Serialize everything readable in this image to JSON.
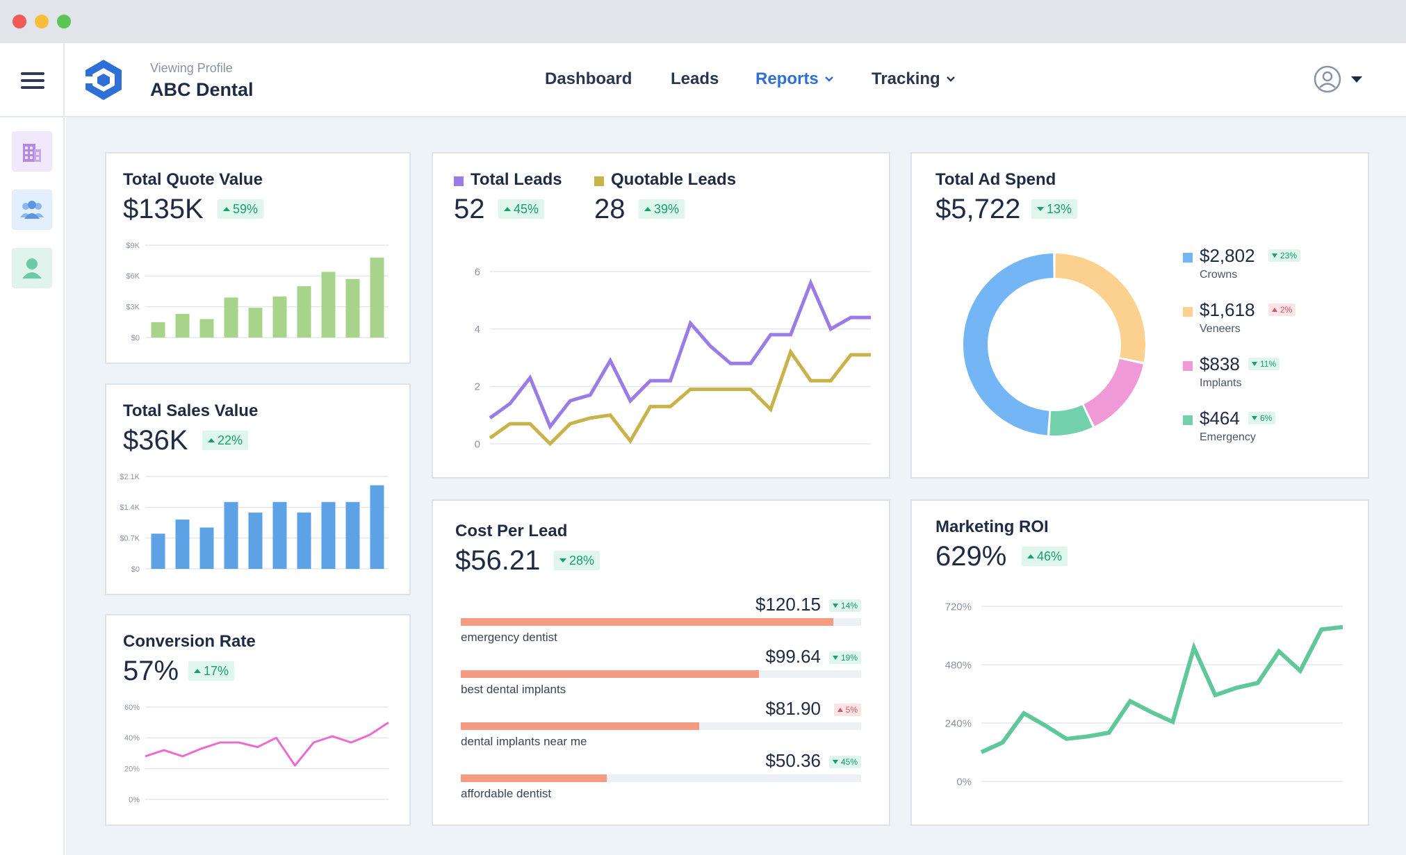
{
  "header": {
    "profile_caption": "Viewing Profile",
    "profile_name": "ABC Dental",
    "nav": [
      {
        "label": "Dashboard",
        "dropdown": false,
        "active": false
      },
      {
        "label": "Leads",
        "dropdown": false,
        "active": false
      },
      {
        "label": "Reports",
        "dropdown": true,
        "active": true
      },
      {
        "label": "Tracking",
        "dropdown": true,
        "active": false
      }
    ],
    "accent_color": "#2f6fd8"
  },
  "sidebar": {
    "items": [
      {
        "icon": "building-icon",
        "color": "#b388e6"
      },
      {
        "icon": "users-icon",
        "color": "#6aa3e8"
      },
      {
        "icon": "user-icon",
        "color": "#6cc9a6"
      }
    ]
  },
  "cards": {
    "quote": {
      "title": "Total Quote Value",
      "value": "$135K",
      "change": "59%",
      "direction": "up"
    },
    "sales": {
      "title": "Total Sales Value",
      "value": "$36K",
      "change": "22%",
      "direction": "up"
    },
    "conversion": {
      "title": "Conversion Rate",
      "value": "57%",
      "change": "17%",
      "direction": "up"
    },
    "leads": {
      "series1_label": "Total Leads",
      "series1_value": "52",
      "series1_change": "45%",
      "series2_label": "Quotable Leads",
      "series2_value": "28",
      "series2_change": "39%"
    },
    "ad_spend": {
      "title": "Total Ad Spend",
      "value": "$5,722",
      "change": "13%",
      "direction": "down",
      "legend": [
        {
          "amount": "$2,802",
          "name": "Crowns",
          "change": "23%",
          "direction": "down",
          "status": "good"
        },
        {
          "amount": "$1,618",
          "name": "Veneers",
          "change": "2%",
          "direction": "up",
          "status": "bad"
        },
        {
          "amount": "$838",
          "name": "Implants",
          "change": "11%",
          "direction": "down",
          "status": "good"
        },
        {
          "amount": "$464",
          "name": "Emergency",
          "change": "6%",
          "direction": "down",
          "status": "good"
        }
      ]
    },
    "cpl": {
      "title": "Cost Per Lead",
      "value": "$56.21",
      "change": "28%",
      "direction": "down",
      "rows": [
        {
          "value": "$120.15",
          "change": "14%",
          "direction": "down",
          "status": "good",
          "label": "emergency dentist",
          "fraction": 0.93
        },
        {
          "value": "$99.64",
          "change": "19%",
          "direction": "down",
          "status": "good",
          "label": "best dental implants",
          "fraction": 0.745
        },
        {
          "value": "$81.90",
          "change": "5%",
          "direction": "up",
          "status": "bad",
          "label": "dental implants near me",
          "fraction": 0.595
        },
        {
          "value": "$50.36",
          "change": "45%",
          "direction": "down",
          "status": "good",
          "label": "affordable dentist",
          "fraction": 0.365
        }
      ]
    },
    "roi": {
      "title": "Marketing ROI",
      "value": "629%",
      "change": "46%",
      "direction": "up"
    }
  },
  "chart_data": [
    {
      "id": "quote",
      "type": "bar",
      "color": "#a8d38a",
      "yticks": [
        "$0",
        "$3K",
        "$6K",
        "$9K"
      ],
      "ylim": [
        0,
        9000
      ],
      "values": [
        1500,
        2300,
        1800,
        3900,
        2900,
        4000,
        5000,
        6400,
        5700,
        7800
      ]
    },
    {
      "id": "sales",
      "type": "bar",
      "color": "#5ea2e6",
      "yticks": [
        "$0",
        "$0.7K",
        "$1.4K",
        "$2.1K"
      ],
      "ylim": [
        0,
        2100
      ],
      "values": [
        800,
        1120,
        940,
        1520,
        1280,
        1520,
        1280,
        1520,
        1520,
        1900
      ]
    },
    {
      "id": "conversion",
      "type": "line",
      "color": "#ec6bd0",
      "yticks": [
        "0%",
        "20%",
        "40%",
        "60%"
      ],
      "ylim": [
        0,
        60
      ],
      "values": [
        28,
        32,
        28,
        33,
        37,
        37,
        34,
        40,
        22,
        37,
        41,
        37,
        42,
        50
      ]
    },
    {
      "id": "leads",
      "type": "line",
      "yticks": [
        "0",
        "2",
        "4",
        "6"
      ],
      "ylim": [
        0,
        6
      ],
      "series": [
        {
          "name": "Total Leads",
          "color": "#9b7be6",
          "values": [
            0.9,
            1.4,
            2.3,
            0.6,
            1.5,
            1.7,
            2.9,
            1.5,
            2.2,
            2.2,
            4.2,
            3.4,
            2.8,
            2.8,
            3.8,
            3.8,
            5.6,
            4.0,
            4.4,
            4.4
          ]
        },
        {
          "name": "Quotable Leads",
          "color": "#c8b24a",
          "values": [
            0.2,
            0.7,
            0.7,
            0.0,
            0.7,
            0.9,
            1.0,
            0.1,
            1.3,
            1.3,
            1.9,
            1.9,
            1.9,
            1.9,
            1.2,
            3.2,
            2.2,
            2.2,
            3.1,
            3.1
          ]
        }
      ]
    },
    {
      "id": "ad_spend",
      "type": "pie",
      "labels": [
        "Veneers",
        "Implants",
        "Emergency",
        "Crowns"
      ],
      "values": [
        1618,
        838,
        464,
        2802
      ],
      "colors": [
        "#fcd08f",
        "#ef9ad6",
        "#72d0ac",
        "#74b6f5"
      ]
    },
    {
      "id": "roi",
      "type": "line",
      "color": "#5fc79a",
      "yticks": [
        "0%",
        "240%",
        "480%",
        "720%"
      ],
      "ylim": [
        0,
        720
      ],
      "values": [
        120,
        160,
        280,
        230,
        175,
        185,
        200,
        330,
        285,
        245,
        550,
        355,
        385,
        405,
        535,
        455,
        625,
        635
      ]
    }
  ]
}
